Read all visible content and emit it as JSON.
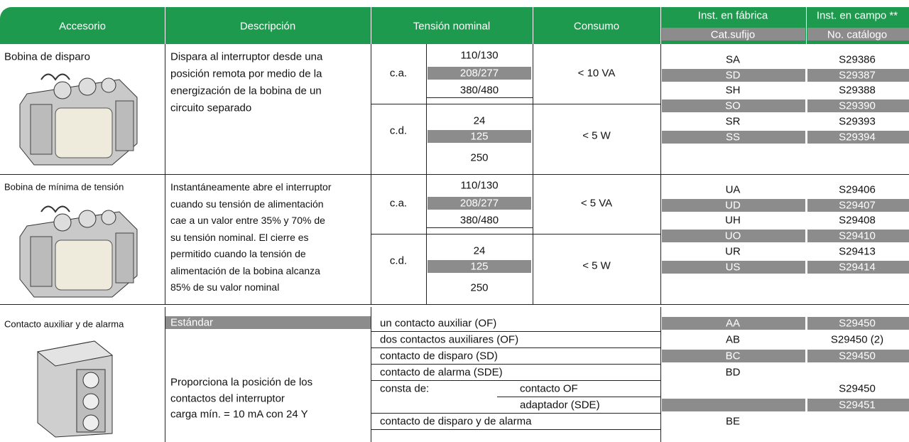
{
  "header": {
    "accesorio": "Accesorio",
    "descripcion": "Descripción",
    "tension": "Tensión nominal",
    "consumo": "Consumo",
    "fabrica": "Inst. en fábrica",
    "campo": "Inst. en campo **",
    "cat_sufijo": "Cat.sufijo",
    "no_catalogo": "No. catálogo"
  },
  "sections": [
    {
      "name": "Bobina de disparo",
      "description": [
        "Dispara al interruptor desde una",
        "posición remota por medio de la",
        "energización de la bobina de un",
        "circuito separado"
      ],
      "ca_label": "c.a.",
      "ca_voltages": [
        "110/130",
        "208/277",
        "380/480"
      ],
      "ca_consumo": "< 10  VA",
      "cd_label": "c.d.",
      "cd_voltages": [
        "24",
        "125",
        "250"
      ],
      "cd_consumo": "< 5  W",
      "rows": [
        {
          "suffix": "SA",
          "catalog": "S29386"
        },
        {
          "suffix": "SD",
          "catalog": "S29387"
        },
        {
          "suffix": "SH",
          "catalog": "S29388"
        },
        {
          "suffix": "SO",
          "catalog": "S29390"
        },
        {
          "suffix": "SR",
          "catalog": "S29393"
        },
        {
          "suffix": "SS",
          "catalog": "S29394"
        }
      ]
    },
    {
      "name": "Bobina de mínima de tensión",
      "description": [
        "Instantáneamente abre el interruptor",
        "cuando su tensión de alimentación",
        "cae a un valor entre 35% y 70% de",
        "su tensión nominal. El cierre es",
        "permitido cuando la tensión de",
        "alimentación de la bobina alcanza",
        "85% de su valor nominal"
      ],
      "ca_label": "c.a.",
      "ca_voltages": [
        "110/130",
        "208/277",
        "380/480"
      ],
      "ca_consumo": "< 5  VA",
      "cd_label": "c.d.",
      "cd_voltages": [
        "24",
        "125",
        "250"
      ],
      "cd_consumo": "< 5  W",
      "rows": [
        {
          "suffix": "UA",
          "catalog": "S29406"
        },
        {
          "suffix": "UD",
          "catalog": "S29407"
        },
        {
          "suffix": "UH",
          "catalog": "S29408"
        },
        {
          "suffix": "UO",
          "catalog": "S29410"
        },
        {
          "suffix": "UR",
          "catalog": "S29413"
        },
        {
          "suffix": "US",
          "catalog": "S29414"
        }
      ]
    },
    {
      "name": "Contacto auxiliar y de alarma",
      "variant": "Estándar",
      "description": [
        "Proporciona la posición de los",
        "contactos del interruptor",
        "carga mín. = 10 mA con 24 Y"
      ],
      "options": [
        {
          "text": "un contacto auxiliar (OF)",
          "suffix": "AA",
          "catalog": "S29450"
        },
        {
          "text": "dos contactos auxiliares (OF)",
          "suffix": "AB",
          "catalog": "S29450 (2)"
        },
        {
          "text": "contacto de disparo (SD)",
          "suffix": "BC",
          "catalog": "S29450"
        },
        {
          "text": "contacto de alarma (SDE)",
          "suffix": "BD"
        },
        {
          "label": "consta de:",
          "items": [
            {
              "text": "contacto OF",
              "catalog": "S29450"
            },
            {
              "text": "adaptador (SDE)",
              "catalog": "S29451"
            }
          ]
        },
        {
          "text": "contacto de disparo y de alarma",
          "suffix": "BE"
        }
      ]
    }
  ]
}
